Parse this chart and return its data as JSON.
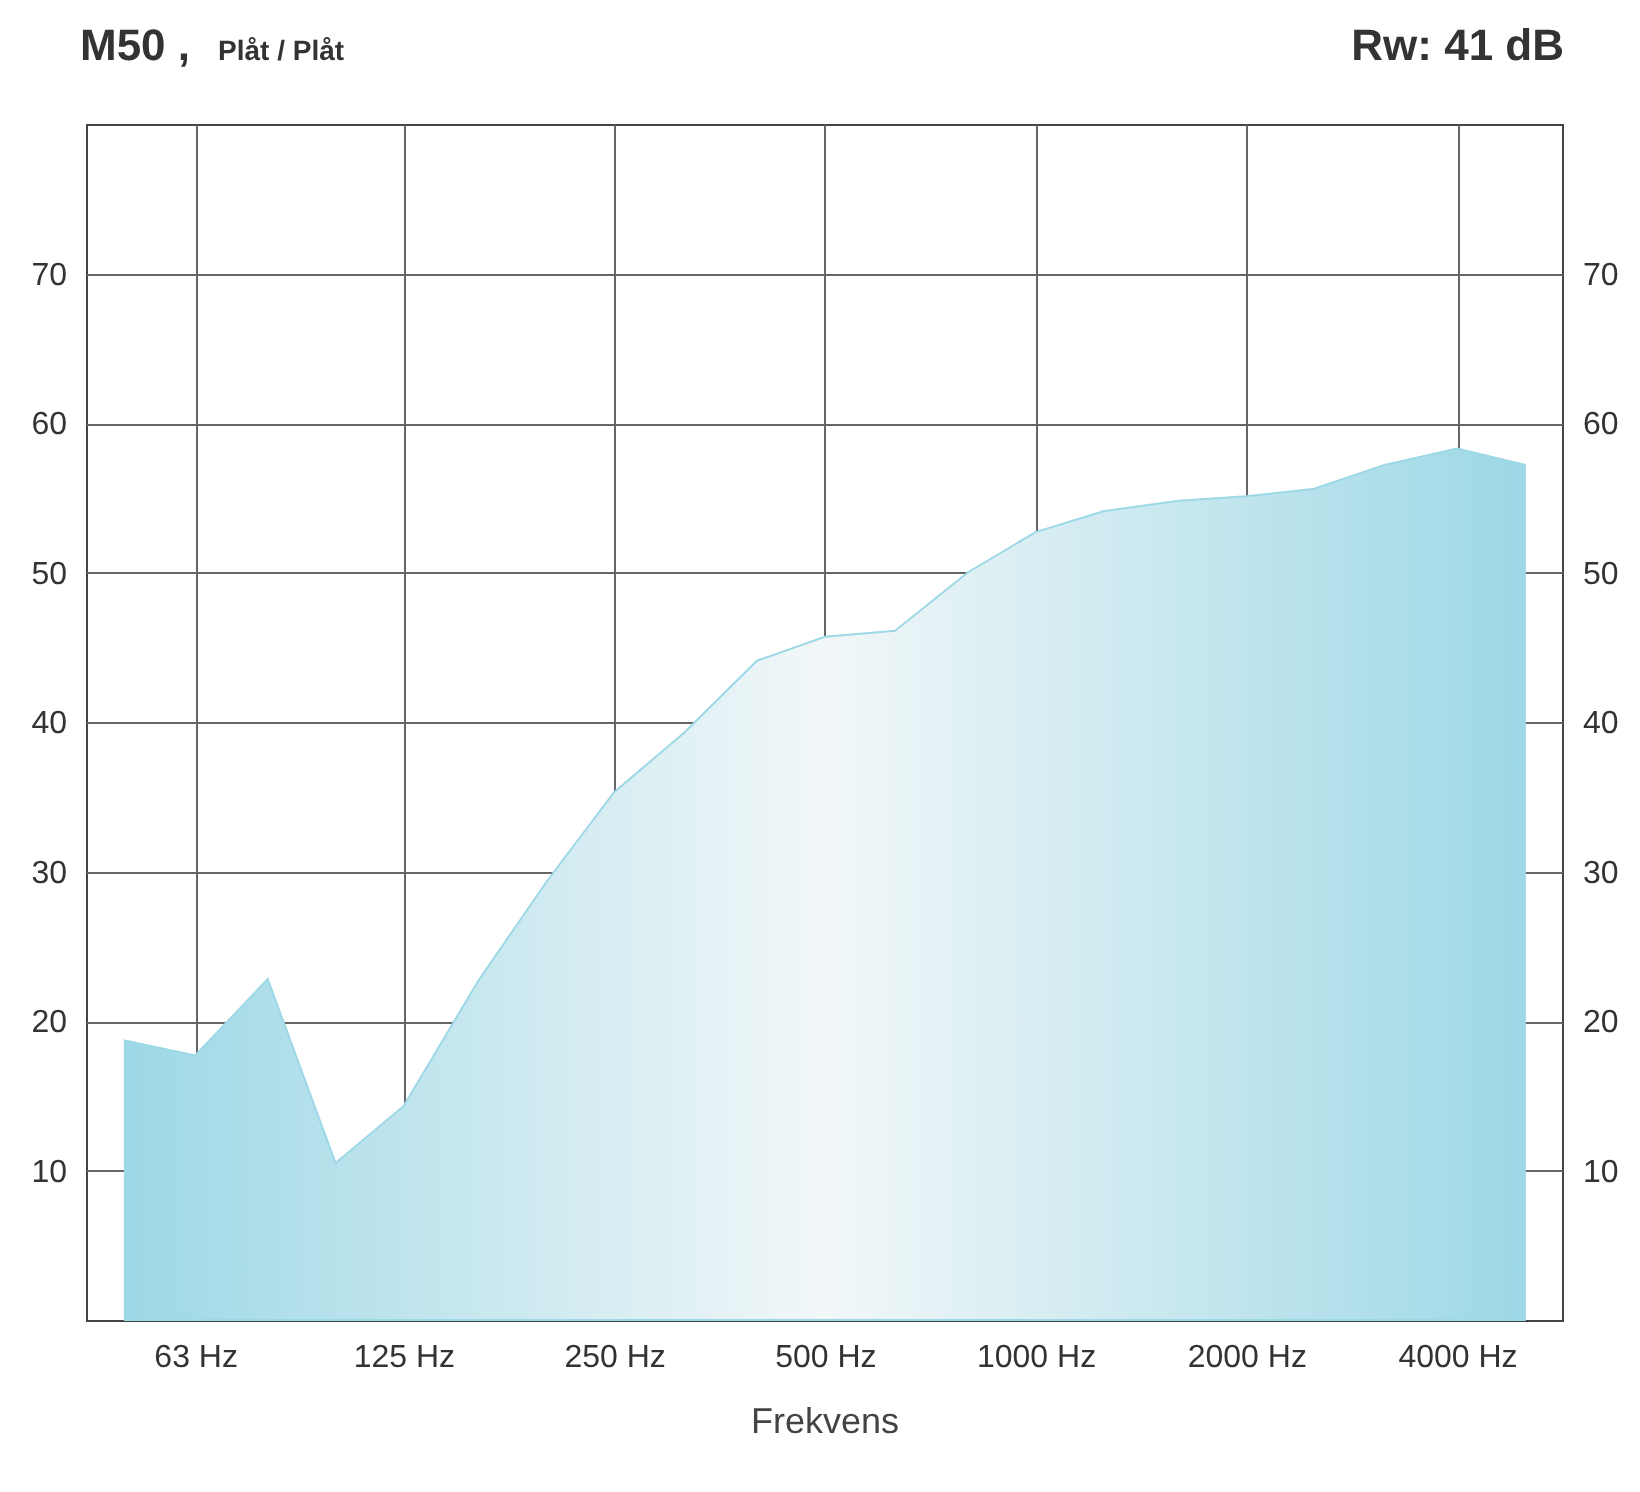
{
  "chart_data": {
    "type": "area",
    "title": "M50 ,",
    "subtitle": "Plåt / Plåt",
    "annotations": [
      "Rw: 41 dB"
    ],
    "xlabel": "Frekvens",
    "x": [
      50,
      63,
      80,
      100,
      125,
      160,
      200,
      250,
      315,
      400,
      500,
      630,
      800,
      1000,
      1250,
      1600,
      2000,
      2500,
      3150,
      4000,
      5000
    ],
    "series": [
      {
        "color": "#9dd8e6",
        "values": [
          18.7,
          17.7,
          22.8,
          10.5,
          14.3,
          22.7,
          29.3,
          35.3,
          39.3,
          44.1,
          45.7,
          46.1,
          50,
          52.7,
          54.1,
          54.8,
          55.1,
          55.6,
          57.2,
          58.3,
          57.2
        ]
      }
    ],
    "log": "x",
    "xlim": [
      44,
      5650
    ],
    "xticks": [
      {
        "value": 63,
        "label": "63 Hz"
      },
      {
        "value": 125,
        "label": "125 Hz"
      },
      {
        "value": 250,
        "label": "250 Hz"
      },
      {
        "value": 500,
        "label": "500 Hz"
      },
      {
        "value": 1000,
        "label": "1000 Hz"
      },
      {
        "value": 2000,
        "label": "2000 Hz"
      },
      {
        "value": 4000,
        "label": "4000 Hz"
      }
    ],
    "ylim": [
      0,
      80
    ],
    "yticks": [
      10,
      20,
      30,
      40,
      50,
      60,
      70
    ],
    "y2lim": [
      0,
      80
    ],
    "y2ticks": [
      10,
      20,
      30,
      40,
      50,
      60,
      70
    ],
    "grid": true
  }
}
